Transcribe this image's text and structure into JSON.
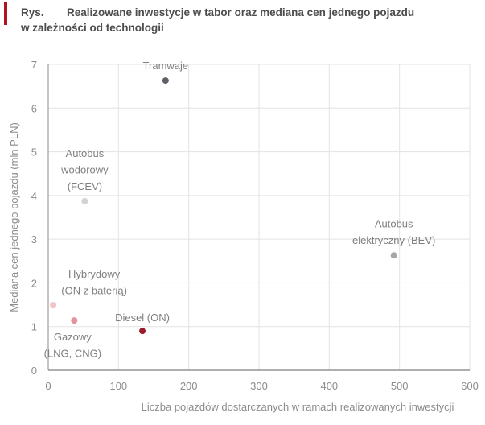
{
  "header": {
    "prefix": "Rys.",
    "title_line1": "Realizowane inwestycje w tabor oraz mediana cen jednego pojazdu",
    "title_line2": "w zależności od technologii",
    "accent_color": "#b0141c"
  },
  "chart_data": {
    "type": "scatter",
    "title": "Realizowane inwestycje w tabor oraz mediana cen jednego pojazdu w zależności od technologii",
    "xlabel": "Liczba pojazdów dostarczanych w ramach realizowanych inwestycji",
    "ylabel": "Mediana cen jednego pojazdu (mln PLN)",
    "xlim": [
      0,
      600
    ],
    "ylim": [
      0,
      7
    ],
    "xticks": [
      "0",
      "100",
      "200",
      "300",
      "400",
      "500",
      "600"
    ],
    "yticks": [
      "0",
      "1",
      "2",
      "3",
      "4",
      "5",
      "6",
      "7"
    ],
    "grid": true,
    "legend": "none",
    "points": [
      {
        "name": "Tramwaje",
        "label_lines": [
          "Tramwaje"
        ],
        "x": 167,
        "y": 6.63,
        "color": "#5f6169",
        "label_pos": "top"
      },
      {
        "name": "Autobus wodorowy (FCEV)",
        "label_lines": [
          "Autobus",
          "wodorowy",
          "(FCEV)"
        ],
        "x": 52,
        "y": 3.87,
        "color": "#d3d3d3",
        "label_pos": "top"
      },
      {
        "name": "Autobus elektryczny (BEV)",
        "label_lines": [
          "Autobus",
          "elektryczny (BEV)"
        ],
        "x": 492,
        "y": 2.63,
        "color": "#a6a6a6",
        "label_pos": "top"
      },
      {
        "name": "Hybrydowy (ON z baterią)",
        "label_lines": [
          "Hybrydowy",
          "(ON z baterią)"
        ],
        "x": 7,
        "y": 1.49,
        "color": "#f2c4c8",
        "label_pos": "top-right"
      },
      {
        "name": "Gazowy (LNG, CNG)",
        "label_lines": [
          "Gazowy",
          "(LNG, CNG)"
        ],
        "x": 37,
        "y": 1.14,
        "color": "#e0959c",
        "label_pos": "bottom"
      },
      {
        "name": "Diesel (ON)",
        "label_lines": [
          "Diesel (ON)"
        ],
        "x": 134,
        "y": 0.9,
        "color": "#9b1b2a",
        "label_pos": "top-left"
      }
    ]
  }
}
